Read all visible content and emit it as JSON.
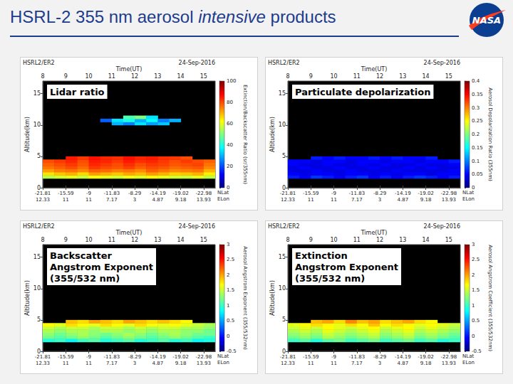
{
  "slide_title": "HSRL-2 355 nm aerosol intensive products",
  "slide_title_italic": "intensive",
  "logo": "NASA",
  "chart_data": [
    {
      "type": "heatmap",
      "title": [
        "Lidar ratio"
      ],
      "header_left": "HSRL2/ER2",
      "header_right": "24-Sep-2016",
      "x_label": "Time(UT)",
      "y_label": "Altitude(km)",
      "xlim": [
        8,
        15.5
      ],
      "xticks": [
        8,
        9,
        10,
        11,
        12,
        13,
        14,
        15
      ],
      "ylim": [
        0,
        17
      ],
      "yticks": [
        0,
        5,
        10,
        15
      ],
      "x": [
        8.25,
        8.75,
        9.25,
        9.75,
        10.25,
        10.75,
        11.25,
        11.75,
        12.25,
        12.75,
        13.25,
        13.75,
        14.25,
        14.75,
        15.25
      ],
      "y": [
        1.75,
        2.25,
        2.75,
        3.25,
        3.75,
        4.25,
        4.75,
        10.25,
        10.75,
        11.25
      ],
      "values": [
        [
          55,
          58,
          60,
          57,
          62,
          60,
          58,
          61,
          59,
          63,
          60,
          58,
          57,
          60,
          56
        ],
        [
          65,
          68,
          70,
          66,
          72,
          70,
          68,
          71,
          69,
          72,
          70,
          67,
          68,
          70,
          64
        ],
        [
          72,
          75,
          76,
          74,
          78,
          77,
          75,
          76,
          74,
          78,
          76,
          74,
          75,
          76,
          70
        ],
        [
          76,
          78,
          80,
          77,
          82,
          80,
          79,
          81,
          78,
          80,
          79,
          77,
          78,
          79,
          74
        ],
        [
          78,
          80,
          82,
          79,
          84,
          82,
          80,
          83,
          80,
          82,
          81,
          79,
          80,
          81,
          76
        ],
        [
          80,
          82,
          84,
          80,
          85,
          84,
          82,
          85,
          83,
          84,
          82,
          80,
          82,
          80,
          78
        ],
        [
          null,
          null,
          85,
          82,
          86,
          84,
          83,
          86,
          84,
          85,
          83,
          82,
          80,
          null,
          null
        ],
        [
          null,
          null,
          null,
          null,
          null,
          null,
          30,
          25,
          35,
          28,
          32,
          null,
          null,
          null,
          null
        ],
        [
          null,
          null,
          null,
          null,
          null,
          22,
          35,
          40,
          30,
          38,
          25,
          30,
          null,
          null,
          null
        ],
        [
          null,
          null,
          null,
          null,
          null,
          null,
          null,
          45,
          50,
          35,
          null,
          null,
          null,
          null,
          null
        ]
      ],
      "colorbar": {
        "label": "Extinction/Backscatter Ratio (sr/355nm)",
        "range": [
          0,
          100
        ],
        "ticks": [
          0,
          20,
          40,
          60,
          80,
          100
        ]
      },
      "position_ticks": {
        "x": [
          8,
          9,
          10,
          11,
          12,
          13,
          14,
          15
        ],
        "lat": [
          -21.81,
          -15.59,
          -9,
          -11.83,
          -8.29,
          -14.19,
          -19.02,
          -22.98
        ],
        "lon": [
          12.33,
          11,
          11,
          7.17,
          3,
          4.87,
          9.18,
          13.93
        ]
      },
      "lat_label": "NLat",
      "lon_label": "ELon"
    },
    {
      "type": "heatmap",
      "title": [
        "Particulate depolarization"
      ],
      "header_left": "HSRL2/ER2",
      "header_right": "24-Sep-2016",
      "x_label": "Time(UT)",
      "y_label": "Altitude(km)",
      "xlim": [
        8,
        15.5
      ],
      "xticks": [
        8,
        9,
        10,
        11,
        12,
        13,
        14,
        15
      ],
      "ylim": [
        0,
        17
      ],
      "yticks": [
        0,
        5,
        10,
        15
      ],
      "x": [
        8.25,
        8.75,
        9.25,
        9.75,
        10.25,
        10.75,
        11.25,
        11.75,
        12.25,
        12.75,
        13.25,
        13.75,
        14.25,
        14.75,
        15.25
      ],
      "y": [
        1.75,
        2.25,
        2.75,
        3.25,
        3.75,
        4.25,
        4.75
      ],
      "values": [
        [
          0.06,
          0.05,
          0.07,
          0.06,
          0.05,
          0.06,
          0.07,
          0.05,
          0.06,
          0.05,
          0.06,
          0.07,
          0.06,
          0.05,
          0.06
        ],
        [
          0.05,
          0.04,
          0.05,
          0.05,
          0.04,
          0.05,
          0.05,
          0.04,
          0.05,
          0.04,
          0.05,
          0.05,
          0.04,
          0.05,
          0.05
        ],
        [
          0.04,
          0.04,
          0.05,
          0.04,
          0.04,
          0.05,
          0.04,
          0.04,
          0.04,
          0.05,
          0.04,
          0.04,
          0.04,
          0.04,
          0.05
        ],
        [
          0.04,
          0.05,
          0.04,
          0.04,
          0.05,
          0.04,
          0.04,
          0.05,
          0.04,
          0.04,
          0.05,
          0.04,
          0.05,
          0.04,
          0.04
        ],
        [
          0.05,
          0.04,
          0.04,
          0.05,
          0.04,
          0.04,
          0.05,
          0.04,
          0.05,
          0.04,
          0.04,
          0.05,
          0.04,
          0.04,
          0.05
        ],
        [
          0.05,
          0.05,
          0.04,
          0.05,
          0.05,
          0.04,
          0.05,
          0.05,
          0.04,
          0.05,
          0.05,
          0.04,
          0.05,
          0.05,
          0.06
        ],
        [
          null,
          null,
          0.06,
          0.05,
          0.06,
          0.05,
          0.05,
          0.06,
          0.05,
          0.06,
          0.05,
          0.05,
          0.06,
          null,
          null
        ]
      ],
      "colorbar": {
        "label": "Aerosol Depolarization Ratio (355nm)",
        "range": [
          0,
          0.4
        ],
        "ticks": [
          0,
          0.05,
          0.1,
          0.15,
          0.2,
          0.25,
          0.3,
          0.35,
          0.4
        ]
      },
      "position_ticks": {
        "x": [
          8,
          9,
          10,
          11,
          12,
          13,
          14,
          15
        ],
        "lat": [
          -21.81,
          -15.59,
          -9,
          -11.83,
          -8.29,
          -14.19,
          -19.02,
          -22.98
        ],
        "lon": [
          12.33,
          11,
          11,
          7.17,
          3,
          4.87,
          9.18,
          13.93
        ]
      },
      "lat_label": "NLat",
      "lon_label": "ELon"
    },
    {
      "type": "heatmap",
      "title": [
        "Backscatter",
        "Angstrom Exponent",
        "(355/532 nm)"
      ],
      "header_left": "HSRL2/ER2",
      "header_right": "24-Sep-2016",
      "x_label": "Time(UT)",
      "y_label": "Altitude(km)",
      "xlim": [
        8,
        15.5
      ],
      "xticks": [
        8,
        9,
        10,
        11,
        12,
        13,
        14,
        15
      ],
      "ylim": [
        0,
        17
      ],
      "yticks": [
        0,
        5,
        10,
        15
      ],
      "x": [
        8.25,
        8.75,
        9.25,
        9.75,
        10.25,
        10.75,
        11.25,
        11.75,
        12.25,
        12.75,
        13.25,
        13.75,
        14.25,
        14.75,
        15.25
      ],
      "y": [
        1.75,
        2.25,
        2.75,
        3.25,
        3.75,
        4.25,
        4.75
      ],
      "values": [
        [
          0.9,
          1.0,
          0.8,
          1.0,
          1.1,
          0.9,
          1.0,
          1.1,
          0.9,
          1.0,
          1.1,
          0.9,
          1.0,
          0.8,
          0.9
        ],
        [
          1.2,
          1.1,
          1.2,
          1.3,
          1.2,
          1.1,
          1.2,
          1.3,
          1.2,
          1.1,
          1.2,
          1.3,
          1.2,
          1.1,
          1.0
        ],
        [
          1.3,
          1.2,
          1.3,
          1.4,
          1.3,
          1.2,
          1.3,
          1.4,
          1.3,
          1.2,
          1.3,
          1.4,
          1.3,
          1.2,
          1.2
        ],
        [
          1.4,
          1.3,
          1.4,
          1.4,
          1.3,
          1.4,
          1.4,
          1.3,
          1.4,
          1.3,
          1.4,
          1.4,
          1.3,
          1.3,
          1.2
        ],
        [
          1.5,
          1.4,
          1.5,
          1.5,
          1.4,
          1.5,
          1.5,
          1.4,
          1.5,
          1.4,
          1.5,
          1.5,
          1.4,
          1.4,
          1.3
        ],
        [
          1.7,
          1.6,
          1.8,
          1.7,
          1.6,
          1.8,
          1.7,
          1.6,
          1.8,
          1.7,
          1.6,
          1.7,
          1.6,
          1.5,
          1.4
        ],
        [
          null,
          null,
          1.9,
          1.8,
          2.0,
          1.9,
          1.8,
          2.0,
          1.9,
          1.8,
          1.9,
          1.8,
          1.7,
          null,
          null
        ]
      ],
      "colorbar": {
        "label": "Aerosol Angstrom Exponent (355/532nm)",
        "range": [
          -0.5,
          3
        ],
        "ticks": [
          -0.5,
          0,
          0.5,
          1,
          1.5,
          2,
          2.5,
          3
        ]
      },
      "position_ticks": {
        "x": [
          8,
          9,
          10,
          11,
          12,
          13,
          14,
          15
        ],
        "lat": [
          -21.81,
          -15.59,
          -9,
          -11.83,
          -8.29,
          -14.19,
          -19.02,
          -22.98
        ],
        "lon": [
          12.33,
          11,
          11,
          7.17,
          3,
          4.87,
          9.18,
          13.93
        ]
      },
      "lat_label": "NLat",
      "lon_label": "ELon"
    },
    {
      "type": "heatmap",
      "title": [
        "Extinction",
        "Angstrom Exponent",
        "(355/532 nm)"
      ],
      "header_left": "HSRL2/ER2",
      "header_right": "24-Sep-2016",
      "x_label": "Time(UT)",
      "y_label": "Altitude(km)",
      "xlim": [
        8,
        15.5
      ],
      "xticks": [
        8,
        9,
        10,
        11,
        12,
        13,
        14,
        15
      ],
      "ylim": [
        0,
        17
      ],
      "yticks": [
        0,
        5,
        10,
        15
      ],
      "x": [
        8.25,
        8.75,
        9.25,
        9.75,
        10.25,
        10.75,
        11.25,
        11.75,
        12.25,
        12.75,
        13.25,
        13.75,
        14.25,
        14.75,
        15.25
      ],
      "y": [
        1.75,
        2.25,
        2.75,
        3.25,
        3.75,
        4.25,
        4.75
      ],
      "values": [
        [
          1.0,
          1.1,
          0.9,
          1.1,
          1.2,
          1.0,
          1.1,
          1.2,
          1.0,
          1.1,
          1.2,
          1.0,
          1.1,
          0.9,
          1.0
        ],
        [
          1.2,
          1.3,
          1.2,
          1.4,
          1.3,
          1.2,
          1.3,
          1.4,
          1.2,
          1.3,
          1.4,
          1.2,
          1.3,
          1.2,
          1.1
        ],
        [
          1.3,
          1.4,
          1.3,
          1.5,
          1.4,
          1.3,
          1.4,
          1.5,
          1.3,
          1.4,
          1.5,
          1.3,
          1.4,
          1.3,
          1.2
        ],
        [
          1.4,
          1.5,
          1.4,
          1.6,
          1.5,
          1.4,
          1.5,
          1.6,
          1.4,
          1.5,
          1.6,
          1.4,
          1.5,
          1.4,
          1.3
        ],
        [
          1.5,
          1.6,
          1.5,
          1.7,
          1.6,
          1.5,
          1.6,
          1.7,
          1.5,
          1.6,
          1.7,
          1.5,
          1.6,
          1.5,
          1.4
        ],
        [
          1.6,
          1.7,
          1.8,
          1.7,
          1.6,
          1.8,
          1.7,
          1.9,
          1.7,
          1.8,
          1.7,
          1.6,
          1.7,
          1.6,
          1.5
        ],
        [
          null,
          null,
          1.9,
          2.0,
          1.8,
          2.1,
          1.9,
          2.0,
          1.8,
          1.9,
          2.0,
          1.8,
          1.7,
          null,
          null
        ]
      ],
      "colorbar": {
        "label": "Aerosol Angstrom Coefficient (355/532nm)",
        "range": [
          -0.5,
          3
        ],
        "ticks": [
          -0.5,
          0,
          0.5,
          1,
          1.5,
          2,
          2.5,
          3
        ]
      },
      "position_ticks": {
        "x": [
          8,
          9,
          10,
          11,
          12,
          13,
          14,
          15
        ],
        "lat": [
          -21.81,
          -15.59,
          -9,
          -11.83,
          -8.29,
          -14.19,
          -19.02,
          -22.98
        ],
        "lon": [
          12.33,
          11,
          11,
          7.17,
          3,
          4.87,
          9.18,
          13.93
        ]
      },
      "lat_label": "NLat",
      "lon_label": "ELon"
    }
  ]
}
